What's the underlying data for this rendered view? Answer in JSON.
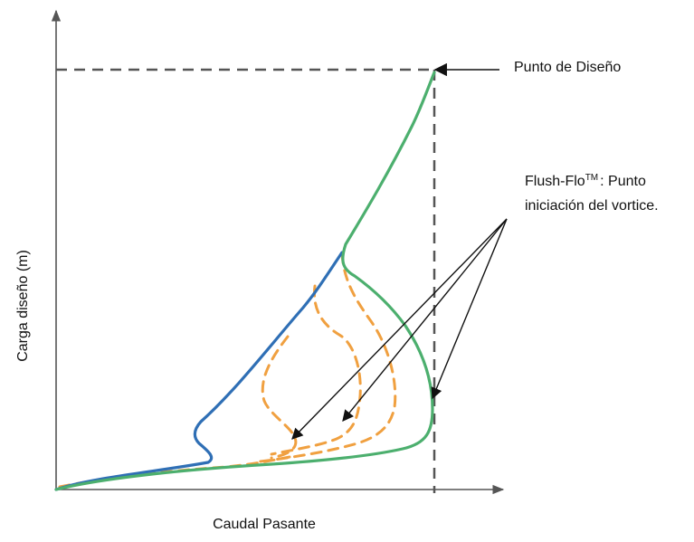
{
  "labels": {
    "design_point": "Punto de Diseño",
    "flush_flo_name": "Flush-Flo",
    "trademark": "TM",
    "flush_flo_suffix": ": Punto",
    "flush_flo_line2": "iniciación del vortice.",
    "y_axis": "Carga diseño (m)",
    "x_axis": "Caudal Pasante"
  },
  "colors": {
    "axis": "#555555",
    "guide_dashed": "#555555",
    "blue_curve": "#2f6fb5",
    "green_curve": "#4caf6e",
    "orange_dashed": "#f0a040",
    "arrow": "#111111"
  }
}
